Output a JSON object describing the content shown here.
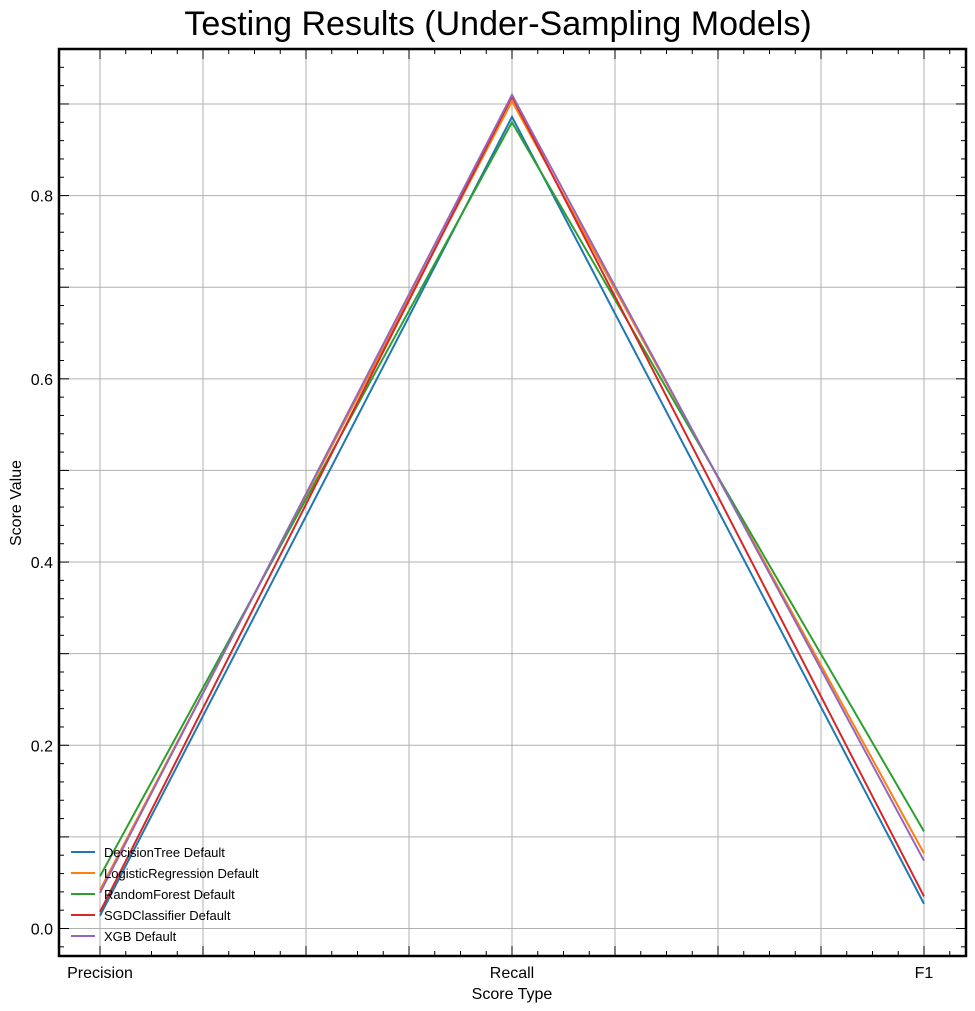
{
  "chart_data": {
    "type": "line",
    "title": "Testing Results (Under-Sampling Models)",
    "xlabel": "Score Type",
    "ylabel": "Score Value",
    "categories": [
      "Precision",
      "Recall",
      "F1"
    ],
    "ylim": [
      -0.03,
      0.96
    ],
    "yticks": [
      0.0,
      0.2,
      0.4,
      0.6,
      0.8
    ],
    "ytick_labels": [
      "0.0",
      "0.2",
      "0.4",
      "0.6",
      "0.8"
    ],
    "grid": true,
    "legend_position": "lower-left",
    "series": [
      {
        "name": "DecisionTree Default",
        "color": "#1f77b4",
        "values": [
          0.014,
          0.886,
          0.027
        ]
      },
      {
        "name": "LogisticRegression Default",
        "color": "#ff7f0e",
        "values": [
          0.042,
          0.903,
          0.082
        ]
      },
      {
        "name": "RandomForest Default",
        "color": "#2ca02c",
        "values": [
          0.057,
          0.88,
          0.106
        ]
      },
      {
        "name": "SGDClassifier Default",
        "color": "#d62728",
        "values": [
          0.018,
          0.908,
          0.035
        ]
      },
      {
        "name": "XGB Default",
        "color": "#9467bd",
        "values": [
          0.039,
          0.91,
          0.074
        ]
      }
    ]
  }
}
